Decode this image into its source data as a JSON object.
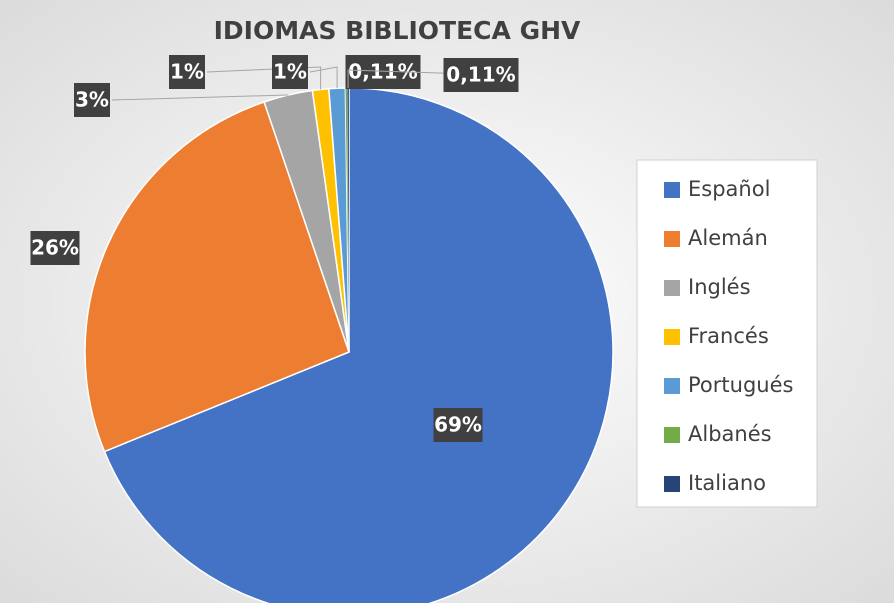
{
  "chart_data": {
    "type": "pie",
    "title": "IDIOMAS BIBLIOTECA GHV",
    "categories": [
      "Español",
      "Alemán",
      "Inglés",
      "Francés",
      "Portugués",
      "Albanés",
      "Italiano"
    ],
    "values": [
      69,
      26,
      3,
      1,
      1,
      0.11,
      0.11
    ],
    "value_labels": [
      "69%",
      "26%",
      "3%",
      "1%",
      "1%",
      "0,11%",
      "0,11%"
    ],
    "colors": [
      "#4472c4",
      "#ed7d31",
      "#a5a5a5",
      "#ffc000",
      "#5b9bd5",
      "#70ad47",
      "#264478"
    ],
    "legend": "right"
  }
}
